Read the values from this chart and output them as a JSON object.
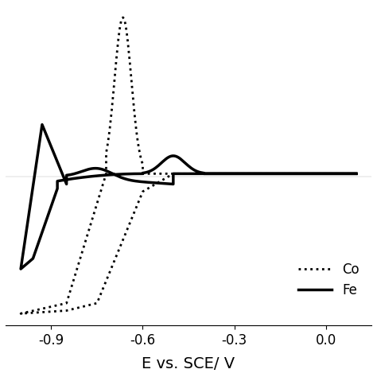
{
  "title": "",
  "xlabel": "E vs. SCE/ V",
  "xlabel_fontsize": 14,
  "xlim": [
    -1.05,
    0.15
  ],
  "ylim": [
    -1.0,
    1.15
  ],
  "xticks": [
    -0.9,
    -0.6,
    -0.3,
    0.0
  ],
  "legend_labels": [
    "Co",
    "Fe"
  ],
  "legend_styles": [
    "dotted",
    "solid"
  ],
  "background_color": "#ffffff",
  "line_color": "#000000",
  "linewidth_solid": 2.5,
  "linewidth_dotted": 2.0
}
